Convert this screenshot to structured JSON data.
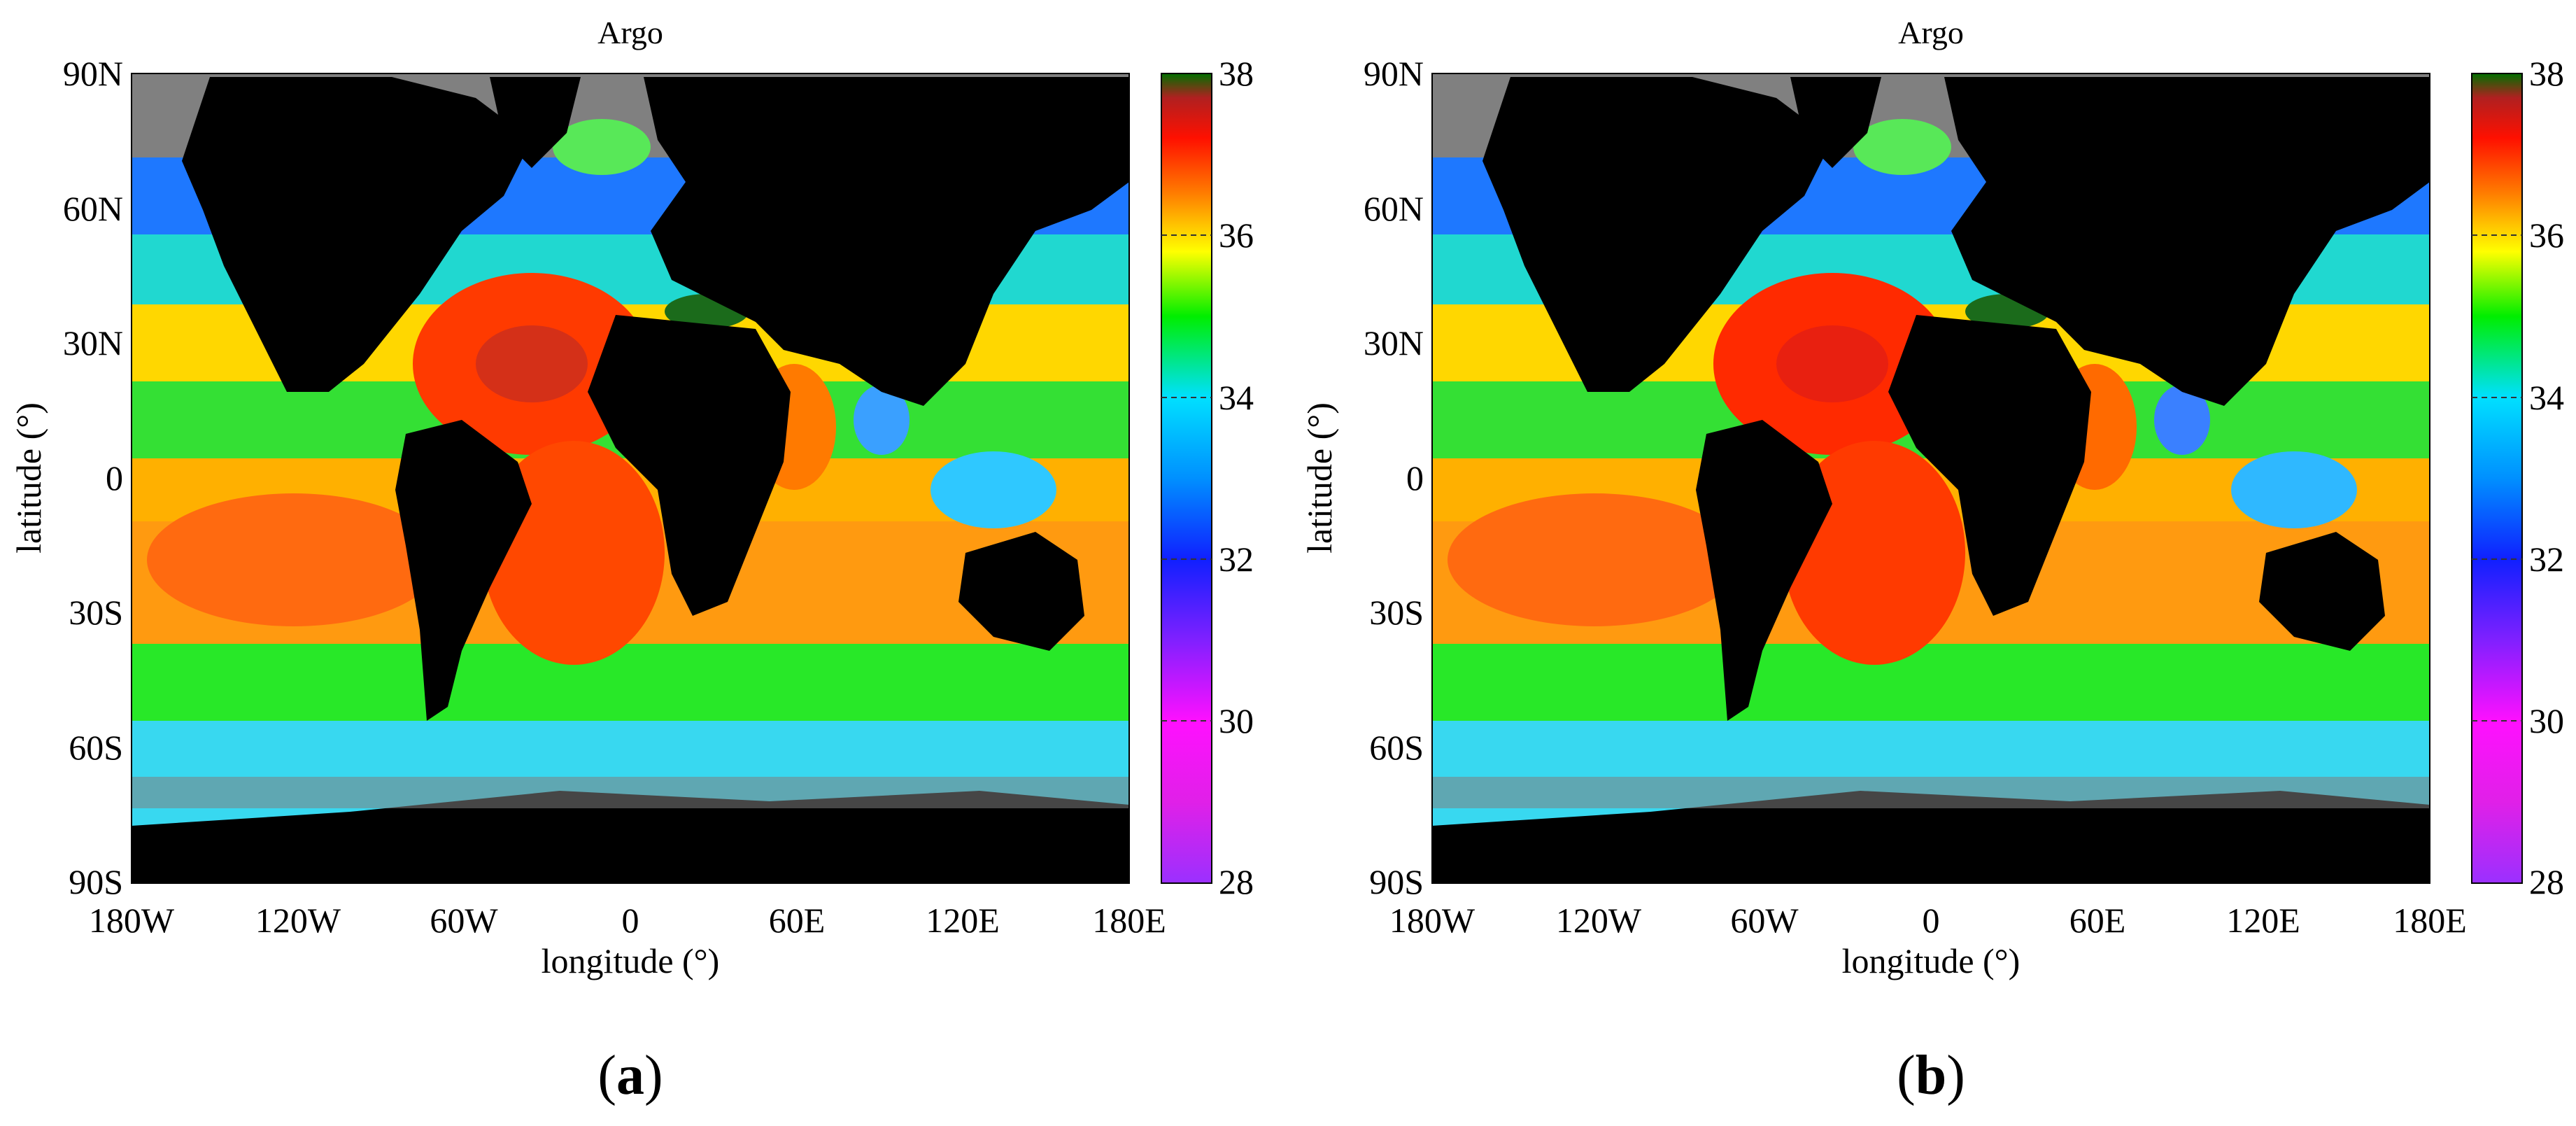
{
  "figure": {
    "panels": [
      {
        "label_open": "(",
        "label_letter": "a",
        "label_close": ")",
        "title": "Argo"
      },
      {
        "label_open": "(",
        "label_letter": "b",
        "label_close": ")",
        "title": "Argo"
      }
    ]
  },
  "map": {
    "xlabel": "longitude (°)",
    "ylabel": "latitude (°)",
    "x_ticks": [
      "180W",
      "120W",
      "60W",
      "0",
      "60E",
      "120E",
      "180E"
    ],
    "y_ticks": [
      "90N",
      "60N",
      "30N",
      "0",
      "30S",
      "60S",
      "90S"
    ],
    "land_color": "#000000",
    "no_data_color": "#808080"
  },
  "colorbar": {
    "ticks": [
      "38",
      "36",
      "34",
      "32",
      "30",
      "28"
    ],
    "range": [
      28,
      38
    ],
    "stops": [
      {
        "value": 28,
        "color": "#9b30ff"
      },
      {
        "value": 29,
        "color": "#e020e8"
      },
      {
        "value": 30,
        "color": "#ff10ff"
      },
      {
        "value": 31,
        "color": "#8020ff"
      },
      {
        "value": 32,
        "color": "#1020ff"
      },
      {
        "value": 33,
        "color": "#0090ff"
      },
      {
        "value": 34,
        "color": "#00e0ff"
      },
      {
        "value": 35,
        "color": "#00ee00"
      },
      {
        "value": 35.8,
        "color": "#ffff00"
      },
      {
        "value": 36.5,
        "color": "#ff8000"
      },
      {
        "value": 37.2,
        "color": "#ff1000"
      },
      {
        "value": 37.7,
        "color": "#b02020"
      },
      {
        "value": 38,
        "color": "#007000"
      }
    ]
  }
}
